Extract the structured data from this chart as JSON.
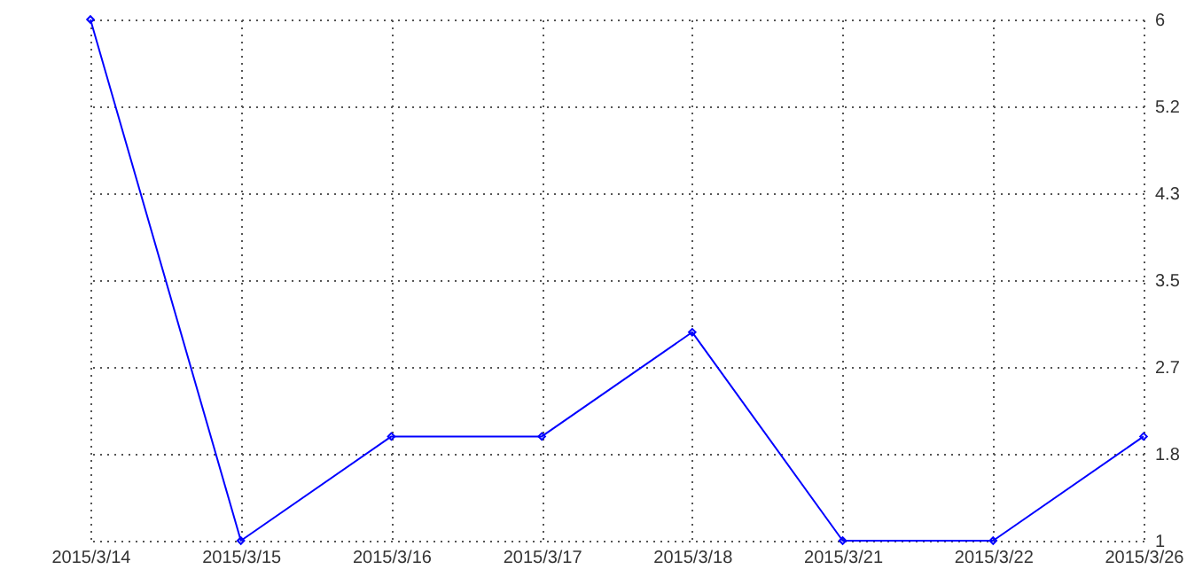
{
  "chart_data": {
    "type": "line",
    "categories": [
      "2015/3/14",
      "2015/3/15",
      "2015/3/16",
      "2015/3/17",
      "2015/3/18",
      "2015/3/21",
      "2015/3/22",
      "2015/3/26"
    ],
    "series": [
      {
        "color": "#0000ff",
        "values": [
          6,
          1,
          2,
          2,
          3,
          1,
          1,
          2
        ]
      }
    ],
    "ylim": [
      1,
      6
    ],
    "yticks": [
      1,
      {
        "value": 1.833,
        "label": "1.8"
      },
      {
        "value": 2.667,
        "label": "2.7"
      },
      3.5,
      {
        "value": 4.333,
        "label": "4.3"
      },
      {
        "value": 5.167,
        "label": "5.2"
      },
      6
    ],
    "grid": true,
    "marker": "diamond",
    "line_style": "solid"
  }
}
